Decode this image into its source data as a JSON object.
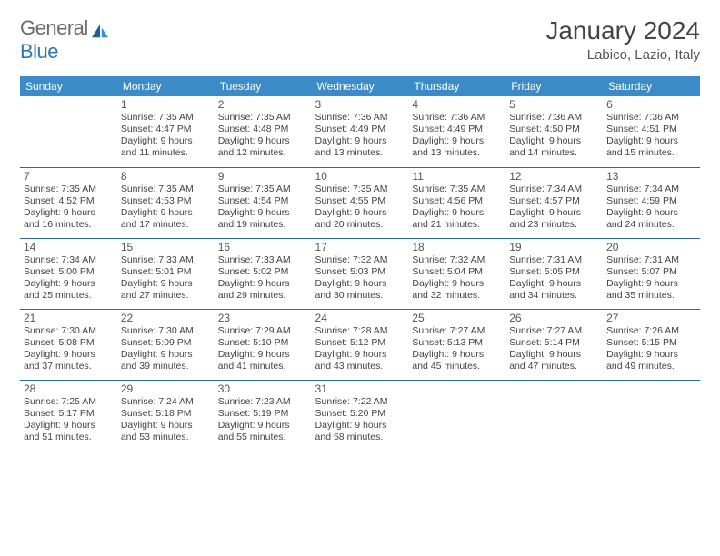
{
  "logo": {
    "word1": "General",
    "word2": "Blue"
  },
  "header": {
    "title": "January 2024",
    "location": "Labico, Lazio, Italy"
  },
  "colors": {
    "header_bg": "#3b8bc8",
    "header_text": "#ffffff",
    "row_border": "#2a6aa0",
    "logo_gray": "#6b6b6b",
    "logo_blue": "#2a7ab0"
  },
  "day_headers": [
    "Sunday",
    "Monday",
    "Tuesday",
    "Wednesday",
    "Thursday",
    "Friday",
    "Saturday"
  ],
  "weeks": [
    [
      null,
      {
        "n": "1",
        "sr": "7:35 AM",
        "ss": "4:47 PM",
        "dl": "9 hours and 11 minutes."
      },
      {
        "n": "2",
        "sr": "7:35 AM",
        "ss": "4:48 PM",
        "dl": "9 hours and 12 minutes."
      },
      {
        "n": "3",
        "sr": "7:36 AM",
        "ss": "4:49 PM",
        "dl": "9 hours and 13 minutes."
      },
      {
        "n": "4",
        "sr": "7:36 AM",
        "ss": "4:49 PM",
        "dl": "9 hours and 13 minutes."
      },
      {
        "n": "5",
        "sr": "7:36 AM",
        "ss": "4:50 PM",
        "dl": "9 hours and 14 minutes."
      },
      {
        "n": "6",
        "sr": "7:36 AM",
        "ss": "4:51 PM",
        "dl": "9 hours and 15 minutes."
      }
    ],
    [
      {
        "n": "7",
        "sr": "7:35 AM",
        "ss": "4:52 PM",
        "dl": "9 hours and 16 minutes."
      },
      {
        "n": "8",
        "sr": "7:35 AM",
        "ss": "4:53 PM",
        "dl": "9 hours and 17 minutes."
      },
      {
        "n": "9",
        "sr": "7:35 AM",
        "ss": "4:54 PM",
        "dl": "9 hours and 19 minutes."
      },
      {
        "n": "10",
        "sr": "7:35 AM",
        "ss": "4:55 PM",
        "dl": "9 hours and 20 minutes."
      },
      {
        "n": "11",
        "sr": "7:35 AM",
        "ss": "4:56 PM",
        "dl": "9 hours and 21 minutes."
      },
      {
        "n": "12",
        "sr": "7:34 AM",
        "ss": "4:57 PM",
        "dl": "9 hours and 23 minutes."
      },
      {
        "n": "13",
        "sr": "7:34 AM",
        "ss": "4:59 PM",
        "dl": "9 hours and 24 minutes."
      }
    ],
    [
      {
        "n": "14",
        "sr": "7:34 AM",
        "ss": "5:00 PM",
        "dl": "9 hours and 25 minutes."
      },
      {
        "n": "15",
        "sr": "7:33 AM",
        "ss": "5:01 PM",
        "dl": "9 hours and 27 minutes."
      },
      {
        "n": "16",
        "sr": "7:33 AM",
        "ss": "5:02 PM",
        "dl": "9 hours and 29 minutes."
      },
      {
        "n": "17",
        "sr": "7:32 AM",
        "ss": "5:03 PM",
        "dl": "9 hours and 30 minutes."
      },
      {
        "n": "18",
        "sr": "7:32 AM",
        "ss": "5:04 PM",
        "dl": "9 hours and 32 minutes."
      },
      {
        "n": "19",
        "sr": "7:31 AM",
        "ss": "5:05 PM",
        "dl": "9 hours and 34 minutes."
      },
      {
        "n": "20",
        "sr": "7:31 AM",
        "ss": "5:07 PM",
        "dl": "9 hours and 35 minutes."
      }
    ],
    [
      {
        "n": "21",
        "sr": "7:30 AM",
        "ss": "5:08 PM",
        "dl": "9 hours and 37 minutes."
      },
      {
        "n": "22",
        "sr": "7:30 AM",
        "ss": "5:09 PM",
        "dl": "9 hours and 39 minutes."
      },
      {
        "n": "23",
        "sr": "7:29 AM",
        "ss": "5:10 PM",
        "dl": "9 hours and 41 minutes."
      },
      {
        "n": "24",
        "sr": "7:28 AM",
        "ss": "5:12 PM",
        "dl": "9 hours and 43 minutes."
      },
      {
        "n": "25",
        "sr": "7:27 AM",
        "ss": "5:13 PM",
        "dl": "9 hours and 45 minutes."
      },
      {
        "n": "26",
        "sr": "7:27 AM",
        "ss": "5:14 PM",
        "dl": "9 hours and 47 minutes."
      },
      {
        "n": "27",
        "sr": "7:26 AM",
        "ss": "5:15 PM",
        "dl": "9 hours and 49 minutes."
      }
    ],
    [
      {
        "n": "28",
        "sr": "7:25 AM",
        "ss": "5:17 PM",
        "dl": "9 hours and 51 minutes."
      },
      {
        "n": "29",
        "sr": "7:24 AM",
        "ss": "5:18 PM",
        "dl": "9 hours and 53 minutes."
      },
      {
        "n": "30",
        "sr": "7:23 AM",
        "ss": "5:19 PM",
        "dl": "9 hours and 55 minutes."
      },
      {
        "n": "31",
        "sr": "7:22 AM",
        "ss": "5:20 PM",
        "dl": "9 hours and 58 minutes."
      },
      null,
      null,
      null
    ]
  ],
  "labels": {
    "sunrise": "Sunrise:",
    "sunset": "Sunset:",
    "daylight": "Daylight:"
  }
}
